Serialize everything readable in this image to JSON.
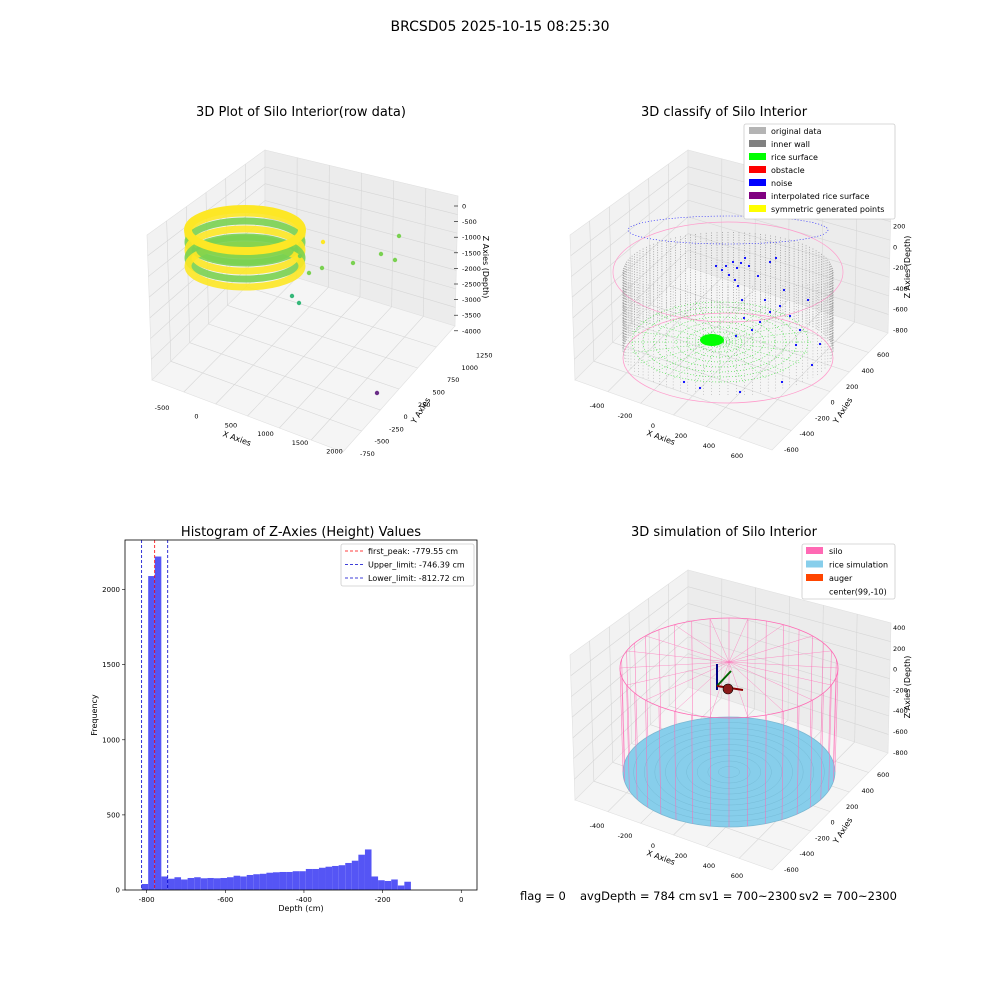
{
  "suptitle": "BRCSD05 2025-10-15 08:25:30",
  "chart_data": [
    {
      "type": "scatter",
      "title": "3D Plot of Silo Interior(row data)",
      "xlabel": "X Axies",
      "ylabel": "Y Axies",
      "zlabel": "Z Axies (Depth)",
      "x_ticks": [
        "-500",
        "0",
        "500",
        "1000",
        "1500",
        "2000"
      ],
      "y_ticks": [
        "-750",
        "-500",
        "-250",
        "0",
        "250",
        "500",
        "750",
        "1000",
        "1250"
      ],
      "z_ticks": [
        "0",
        "-500",
        "-1000",
        "-1500",
        "-2000",
        "-2500",
        "-3000",
        "-3500",
        "-4000"
      ],
      "colors": {
        "ring_top": "#fde725",
        "ring_mid": "#7ad151",
        "outlier_teal": "#35b779",
        "outlier_purple": "#6a2c87"
      }
    },
    {
      "type": "scatter",
      "title": "3D classify of Silo Interior",
      "xlabel": "X Axies",
      "ylabel": "Y Axies",
      "zlabel": "Z Axies (Depth)",
      "x_ticks": [
        "-400",
        "-200",
        "0",
        "200",
        "400",
        "600"
      ],
      "y_ticks": [
        "-600",
        "-400",
        "-200",
        "0",
        "200",
        "400",
        "600"
      ],
      "z_ticks": [
        "200",
        "0",
        "-200",
        "-400",
        "-600",
        "-800"
      ],
      "legend": [
        {
          "label": "original data",
          "color": "#b4b4b4"
        },
        {
          "label": "inner wall",
          "color": "#808080"
        },
        {
          "label": "rice surface",
          "color": "#00ff00"
        },
        {
          "label": "obstacle",
          "color": "#ff0000"
        },
        {
          "label": "noise",
          "color": "#0000ff"
        },
        {
          "label": "interpolated rice surface",
          "color": "#800080"
        },
        {
          "label": "symmetric generated points",
          "color": "#ffff00"
        }
      ]
    },
    {
      "type": "bar",
      "title": "Histogram of Z-Axies (Height) Values",
      "xlabel": "Depth (cm)",
      "ylabel": "Frequency",
      "xlim": [
        -855,
        40
      ],
      "ylim": [
        0,
        2330
      ],
      "x_ticks": [
        -800,
        -600,
        -400,
        -200,
        0
      ],
      "y_ticks": [
        0,
        500,
        1000,
        1500,
        2000
      ],
      "bin_start": -812.72,
      "bin_width": 16.7,
      "values": [
        40,
        2090,
        2220,
        90,
        75,
        85,
        70,
        80,
        85,
        78,
        80,
        78,
        80,
        85,
        95,
        90,
        100,
        105,
        108,
        115,
        118,
        120,
        120,
        125,
        125,
        140,
        140,
        148,
        155,
        160,
        165,
        180,
        195,
        235,
        270,
        90,
        65,
        60,
        70,
        30,
        55
      ],
      "bar_color": "#5555f5",
      "lines": [
        {
          "label": "first_peak: -779.55 cm",
          "x": -779.55,
          "color": "#ff0000"
        },
        {
          "label": "Upper_limit: -746.39 cm",
          "x": -746.39,
          "color": "#0000cc"
        },
        {
          "label": "Lower_limit: -812.72 cm",
          "x": -812.72,
          "color": "#0000cc"
        }
      ]
    },
    {
      "type": "scatter",
      "title": "3D simulation of Silo Interior",
      "xlabel": "X Axies",
      "ylabel": "Y Axies",
      "zlabel": "Z Axies (Depth)",
      "x_ticks": [
        "-400",
        "-200",
        "0",
        "200",
        "400",
        "600"
      ],
      "y_ticks": [
        "-600",
        "-400",
        "-200",
        "0",
        "200",
        "400",
        "600"
      ],
      "z_ticks": [
        "400",
        "200",
        "0",
        "-200",
        "-400",
        "-600",
        "-800"
      ],
      "legend": [
        {
          "label": "silo",
          "color": "#ff69b4"
        },
        {
          "label": "rice simulation",
          "color": "#87ceeb"
        },
        {
          "label": "auger",
          "color": "#ff4500"
        },
        {
          "label": "center(99,-10)",
          "color": ""
        }
      ]
    }
  ],
  "footer": {
    "flag": "flag = 0",
    "avg_depth": "avgDepth = 784 cm",
    "sv1": "sv1 = 700~2300",
    "sv2": "sv2 = 700~2300"
  }
}
